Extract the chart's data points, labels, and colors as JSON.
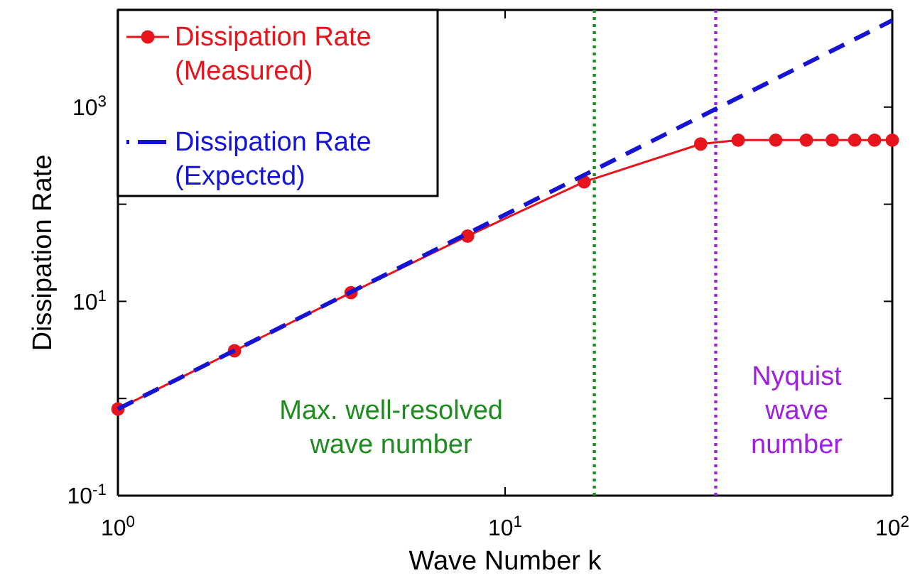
{
  "chart_data": {
    "type": "line",
    "xlabel": "Wave Number k",
    "ylabel": "Dissipation Rate",
    "log": "xy",
    "xlim": [
      1,
      100
    ],
    "ylim": [
      0.1,
      10000
    ],
    "xticks": [
      {
        "value": 1,
        "label": "10$^{0}$"
      },
      {
        "value": 10,
        "label": "10$^{1}$"
      },
      {
        "value": 100,
        "label": "10$^{2}$"
      }
    ],
    "yticks": [
      {
        "value": 0.1,
        "label": "10$^{-1}$"
      },
      {
        "value": 1,
        "label": null
      },
      {
        "value": 10,
        "label": "10$^{1}$"
      },
      {
        "value": 100,
        "label": null
      },
      {
        "value": 1000,
        "label": "10$^{3}$"
      }
    ],
    "series": [
      {
        "name": "Dissipation Rate\n(Measured)",
        "color": "#e8141c",
        "marker": "circle",
        "line_style": "solid",
        "x": [
          1,
          2,
          4,
          8,
          16,
          32,
          40,
          50,
          60,
          70,
          80,
          90,
          100
        ],
        "values": [
          0.78,
          3.1,
          12.3,
          47,
          170,
          417,
          457,
          457,
          457,
          457,
          457,
          457,
          457
        ]
      },
      {
        "name": "Dissipation Rate\n(Expected)",
        "color": "#1414d2",
        "marker": "none",
        "line_style": "dashed",
        "x": [
          1,
          100
        ],
        "values": [
          0.78,
          7800
        ]
      }
    ],
    "ref_lines": [
      {
        "axis": "x",
        "value": 17,
        "label": "Max. well-resolved\nwave number",
        "color": "#1e8c1e",
        "line_style": "dotted"
      },
      {
        "axis": "x",
        "value": 35,
        "label": "Nyquist\nwave\nnumber",
        "color": "#a020e0",
        "line_style": "dotted"
      }
    ],
    "legend": "top left",
    "grid": false
  }
}
